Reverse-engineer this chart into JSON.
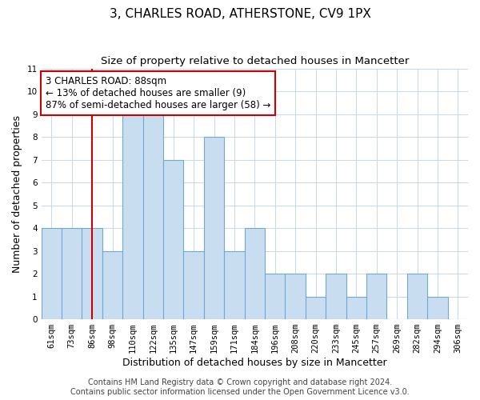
{
  "title": "3, CHARLES ROAD, ATHERSTONE, CV9 1PX",
  "subtitle": "Size of property relative to detached houses in Mancetter",
  "xlabel": "Distribution of detached houses by size in Mancetter",
  "ylabel": "Number of detached properties",
  "bin_labels": [
    "61sqm",
    "73sqm",
    "86sqm",
    "98sqm",
    "110sqm",
    "122sqm",
    "135sqm",
    "147sqm",
    "159sqm",
    "171sqm",
    "184sqm",
    "196sqm",
    "208sqm",
    "220sqm",
    "233sqm",
    "245sqm",
    "257sqm",
    "269sqm",
    "282sqm",
    "294sqm",
    "306sqm"
  ],
  "bar_heights": [
    4,
    4,
    4,
    3,
    9,
    9,
    7,
    3,
    8,
    3,
    4,
    2,
    2,
    1,
    2,
    1,
    2,
    0,
    2,
    1,
    0
  ],
  "bar_color": "#c9ddf0",
  "bar_edge_color": "#6fa8d4",
  "vline_x_index": 2,
  "vline_color": "#cc0000",
  "annotation_text": "3 CHARLES ROAD: 88sqm\n← 13% of detached houses are smaller (9)\n87% of semi-detached houses are larger (58) →",
  "annotation_box_edge_color": "#cc0000",
  "annotation_box_face_color": "#ffffff",
  "ylim": [
    0,
    11
  ],
  "yticks": [
    0,
    1,
    2,
    3,
    4,
    5,
    6,
    7,
    8,
    9,
    10,
    11
  ],
  "footer": "Contains HM Land Registry data © Crown copyright and database right 2024.\nContains public sector information licensed under the Open Government Licence v3.0.",
  "title_fontsize": 11,
  "subtitle_fontsize": 9.5,
  "xlabel_fontsize": 9,
  "ylabel_fontsize": 9,
  "annotation_fontsize": 8.5,
  "tick_fontsize": 7.5,
  "footer_fontsize": 7
}
